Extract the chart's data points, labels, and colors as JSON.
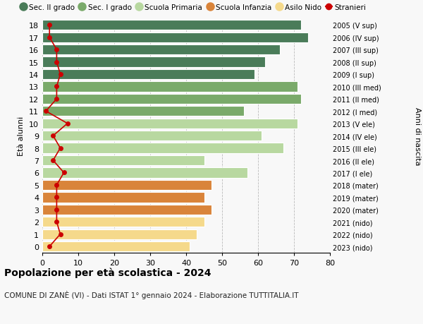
{
  "ages": [
    18,
    17,
    16,
    15,
    14,
    13,
    12,
    11,
    10,
    9,
    8,
    7,
    6,
    5,
    4,
    3,
    2,
    1,
    0
  ],
  "years": [
    "2005 (V sup)",
    "2006 (IV sup)",
    "2007 (III sup)",
    "2008 (II sup)",
    "2009 (I sup)",
    "2010 (III med)",
    "2011 (II med)",
    "2012 (I med)",
    "2013 (V ele)",
    "2014 (IV ele)",
    "2015 (III ele)",
    "2016 (II ele)",
    "2017 (I ele)",
    "2018 (mater)",
    "2019 (mater)",
    "2020 (mater)",
    "2021 (nido)",
    "2022 (nido)",
    "2023 (nido)"
  ],
  "bar_values": [
    72,
    74,
    66,
    62,
    59,
    71,
    72,
    56,
    71,
    61,
    67,
    45,
    57,
    47,
    45,
    47,
    45,
    43,
    41
  ],
  "stranieri_values": [
    2,
    2,
    4,
    4,
    5,
    4,
    4,
    1,
    7,
    3,
    5,
    3,
    6,
    4,
    4,
    4,
    4,
    5,
    2
  ],
  "bar_colors": [
    "#4a7c59",
    "#4a7c59",
    "#4a7c59",
    "#4a7c59",
    "#4a7c59",
    "#7aaa6a",
    "#7aaa6a",
    "#7aaa6a",
    "#b8d8a0",
    "#b8d8a0",
    "#b8d8a0",
    "#b8d8a0",
    "#b8d8a0",
    "#d9843a",
    "#d9843a",
    "#d9843a",
    "#f5d98b",
    "#f5d98b",
    "#f5d98b"
  ],
  "legend_items": [
    {
      "label": "Sec. II grado",
      "color": "#4a7c59",
      "type": "circle"
    },
    {
      "label": "Sec. I grado",
      "color": "#7aaa6a",
      "type": "circle"
    },
    {
      "label": "Scuola Primaria",
      "color": "#b8d8a0",
      "type": "circle"
    },
    {
      "label": "Scuola Infanzia",
      "color": "#d9843a",
      "type": "circle"
    },
    {
      "label": "Asilo Nido",
      "color": "#f5d98b",
      "type": "circle"
    },
    {
      "label": "Stranieri",
      "color": "#cc0000",
      "type": "dot"
    }
  ],
  "stranieri_color": "#cc0000",
  "title": "Popolazione per età scolastica - 2024",
  "subtitle": "COMUNE DI ZANÈ (VI) - Dati ISTAT 1° gennaio 2024 - Elaborazione TUTTITALIA.IT",
  "ylabel_left": "Età alunni",
  "ylabel_right": "Anni di nascita",
  "xlim": [
    0,
    80
  ],
  "xticks": [
    0,
    10,
    20,
    30,
    40,
    50,
    60,
    70,
    80
  ],
  "background_color": "#f8f8f8",
  "grid_color": "#bbbbbb"
}
